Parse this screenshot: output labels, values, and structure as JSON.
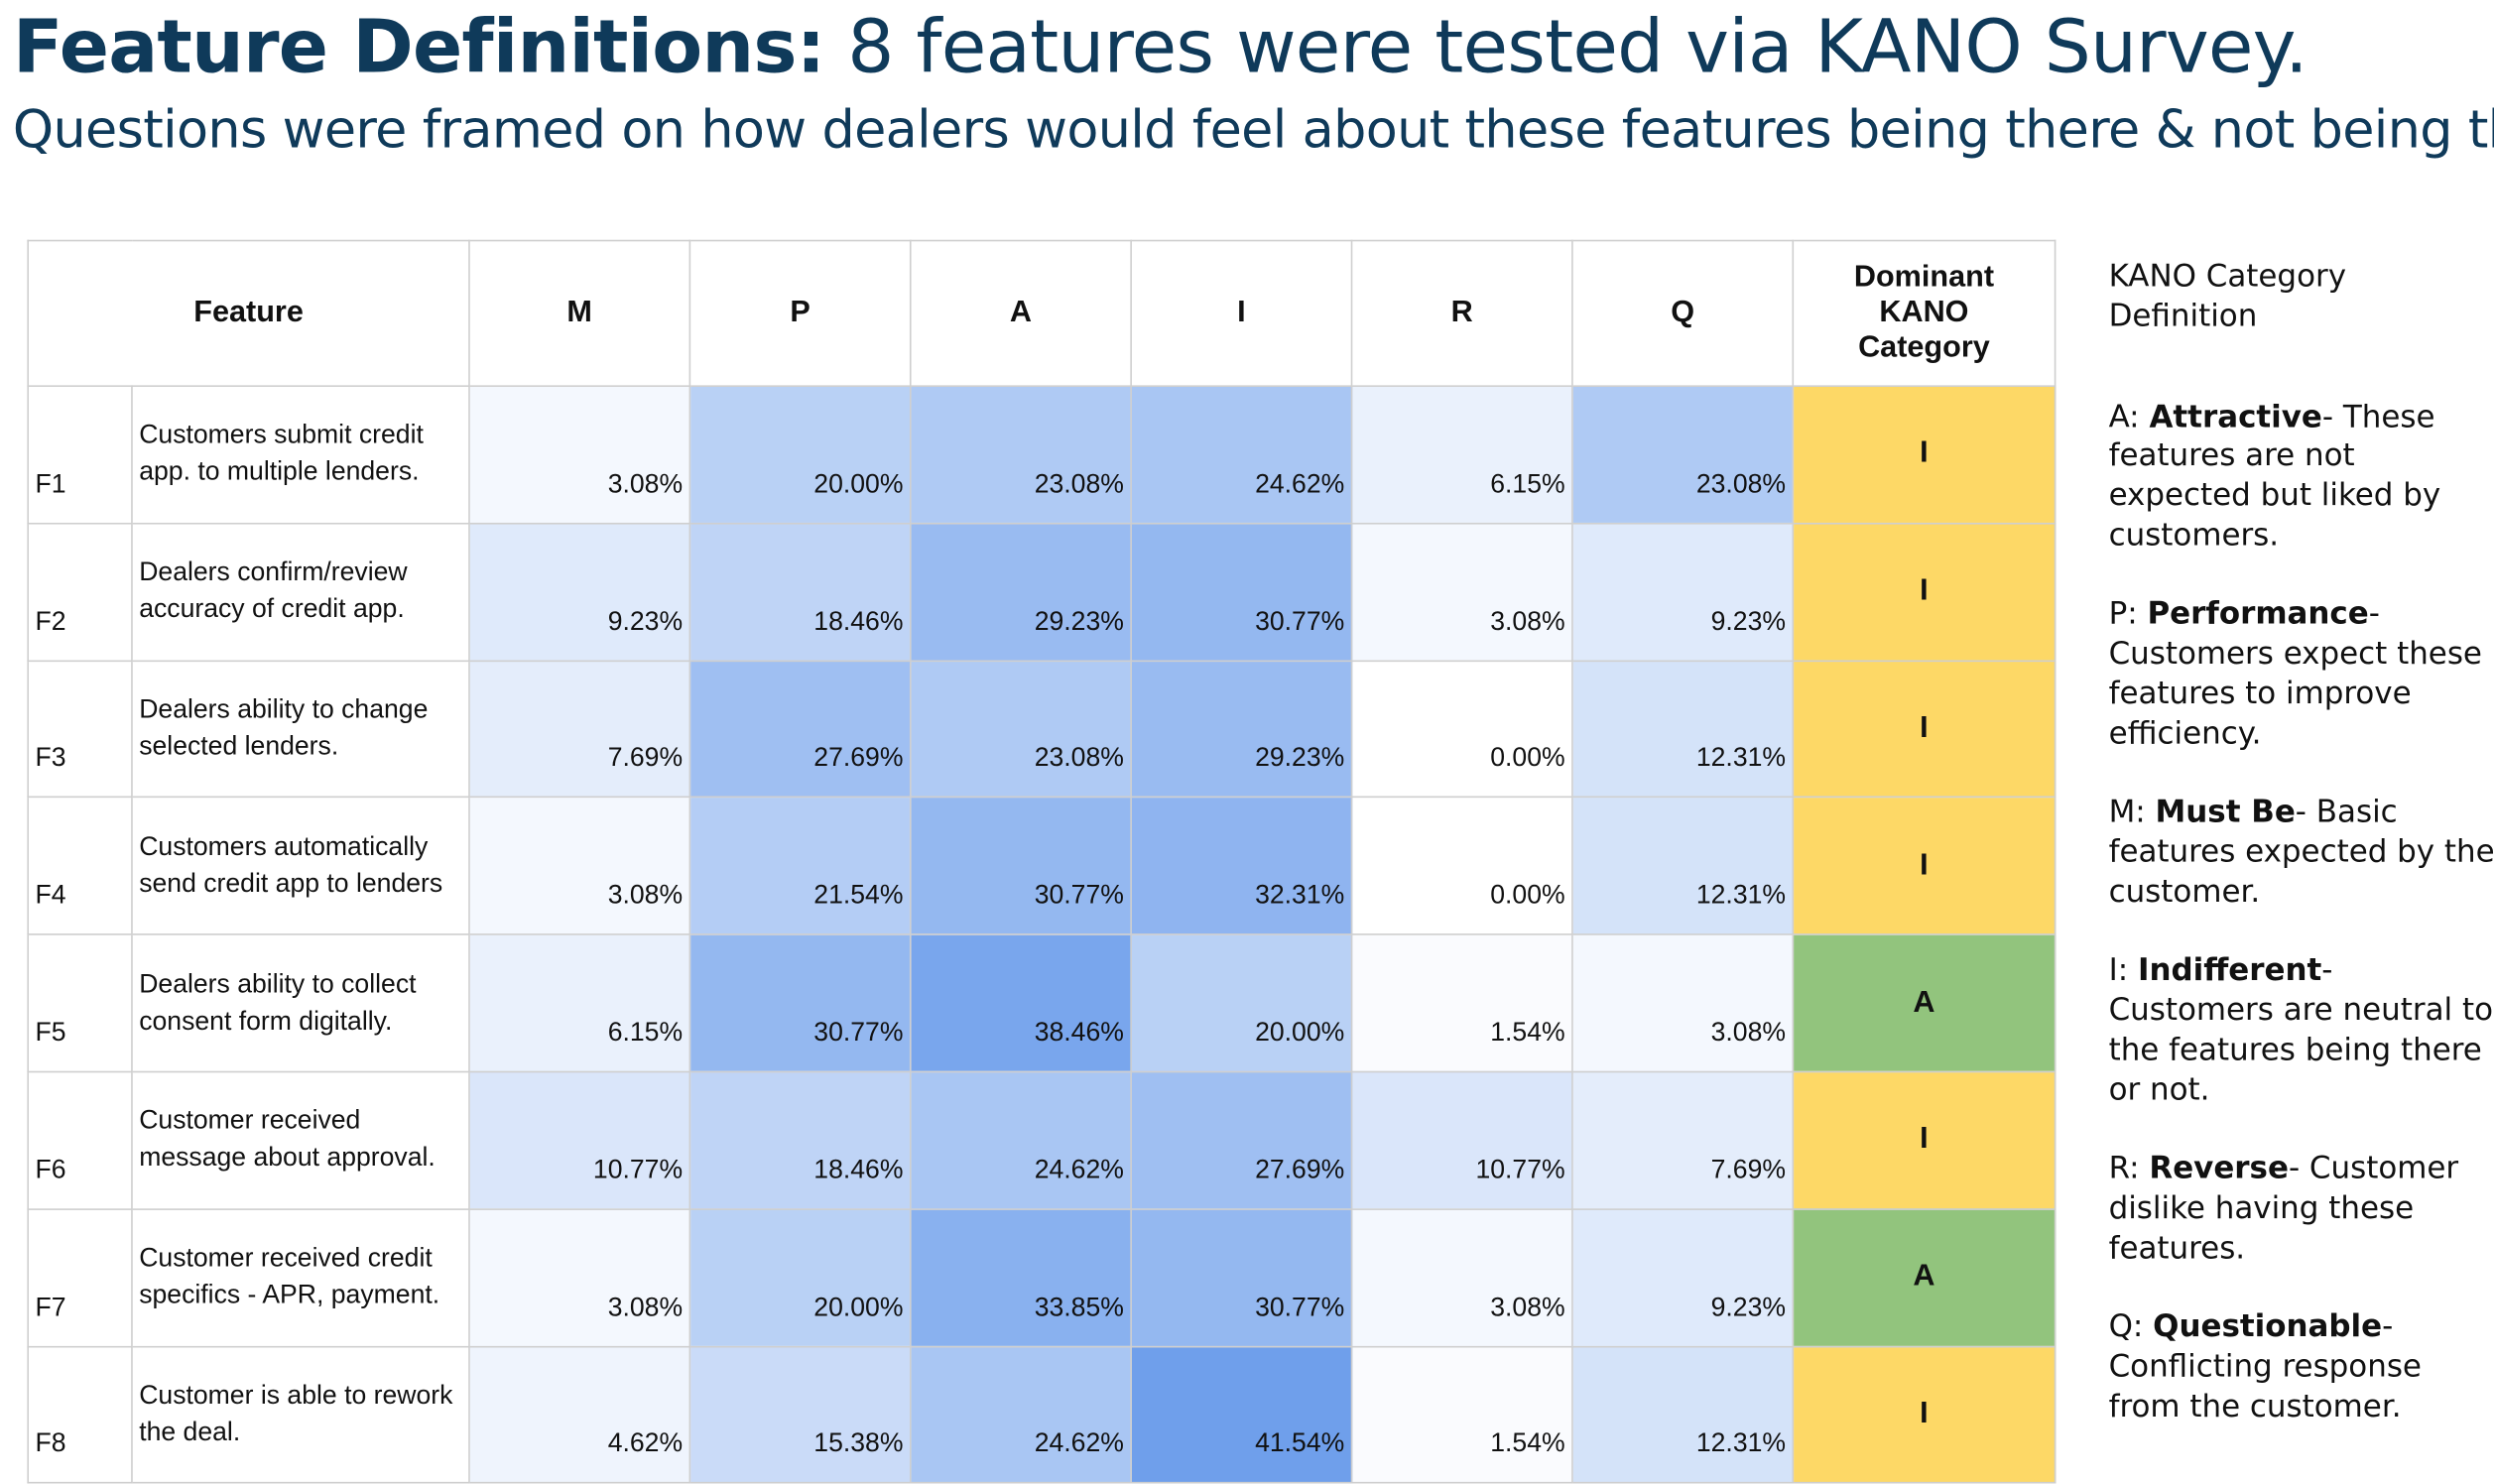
{
  "header": {
    "title_bold": "Feature Definitions:",
    "title_rest": "8 features were tested via KANO Survey.",
    "subtitle": "Questions were framed on how dealers would feel about these features being there & not being there."
  },
  "table": {
    "columns": [
      "Feature",
      "M",
      "P",
      "A",
      "I",
      "R",
      "Q",
      "Dominant KANO Category"
    ],
    "rows": [
      {
        "id": "F1",
        "feature": "Customers submit credit app. to multiple lenders.",
        "values": [
          "3.08%",
          "20.00%",
          "23.08%",
          "24.62%",
          "6.15%",
          "23.08%"
        ],
        "category": "I",
        "category_color": "#fdd866"
      },
      {
        "id": "F2",
        "feature": "Dealers confirm/review accuracy of credit app.",
        "values": [
          "9.23%",
          "18.46%",
          "29.23%",
          "30.77%",
          "3.08%",
          "9.23%"
        ],
        "category": "I",
        "category_color": "#fdd866"
      },
      {
        "id": "F3",
        "feature": "Dealers ability to change selected lenders.",
        "values": [
          "7.69%",
          "27.69%",
          "23.08%",
          "29.23%",
          "0.00%",
          "12.31%"
        ],
        "category": "I",
        "category_color": "#fdd866"
      },
      {
        "id": "F4",
        "feature": "Customers automatically send credit app to lenders",
        "values": [
          "3.08%",
          "21.54%",
          "30.77%",
          "32.31%",
          "0.00%",
          "12.31%"
        ],
        "category": "I",
        "category_color": "#fdd866"
      },
      {
        "id": "F5",
        "feature": "Dealers ability to collect consent form digitally.",
        "values": [
          "6.15%",
          "30.77%",
          "38.46%",
          "20.00%",
          "1.54%",
          "3.08%"
        ],
        "category": "A",
        "category_color": "#92c47d"
      },
      {
        "id": "F6",
        "feature": "Customer received message about approval.",
        "values": [
          "10.77%",
          "18.46%",
          "24.62%",
          "27.69%",
          "10.77%",
          "7.69%"
        ],
        "category": "I",
        "category_color": "#fdd866"
      },
      {
        "id": "F7",
        "feature": "Customer received credit specifics - APR, payment.",
        "values": [
          "3.08%",
          "20.00%",
          "33.85%",
          "30.77%",
          "3.08%",
          "9.23%"
        ],
        "category": "A",
        "category_color": "#92c47d"
      },
      {
        "id": "F8",
        "feature": "Customer is able to rework the deal.",
        "values": [
          "4.62%",
          "15.38%",
          "24.62%",
          "41.54%",
          "1.54%",
          "12.31%"
        ],
        "category": "I",
        "category_color": "#fdd866"
      }
    ]
  },
  "sidebar": {
    "title": "KANO Category Definition",
    "definitions": [
      {
        "prefix": "A:",
        "term": "Attractive",
        "text": "- These features are not expected but liked by customers."
      },
      {
        "prefix": "P:",
        "term": "Performance",
        "text": "- Customers expect these features to improve efficiency."
      },
      {
        "prefix": "M:",
        "term": "Must Be",
        "text": "- Basic features expected by the customer."
      },
      {
        "prefix": "I:",
        "term": "Indifferent",
        "text": "- Customers are neutral to the features being there or not."
      },
      {
        "prefix": "R:",
        "term": "Reverse",
        "text": "- Customer dislike having these features."
      },
      {
        "prefix": "Q:",
        "term": "Questionable",
        "text": "- Conflicting response from the customer."
      }
    ]
  }
}
